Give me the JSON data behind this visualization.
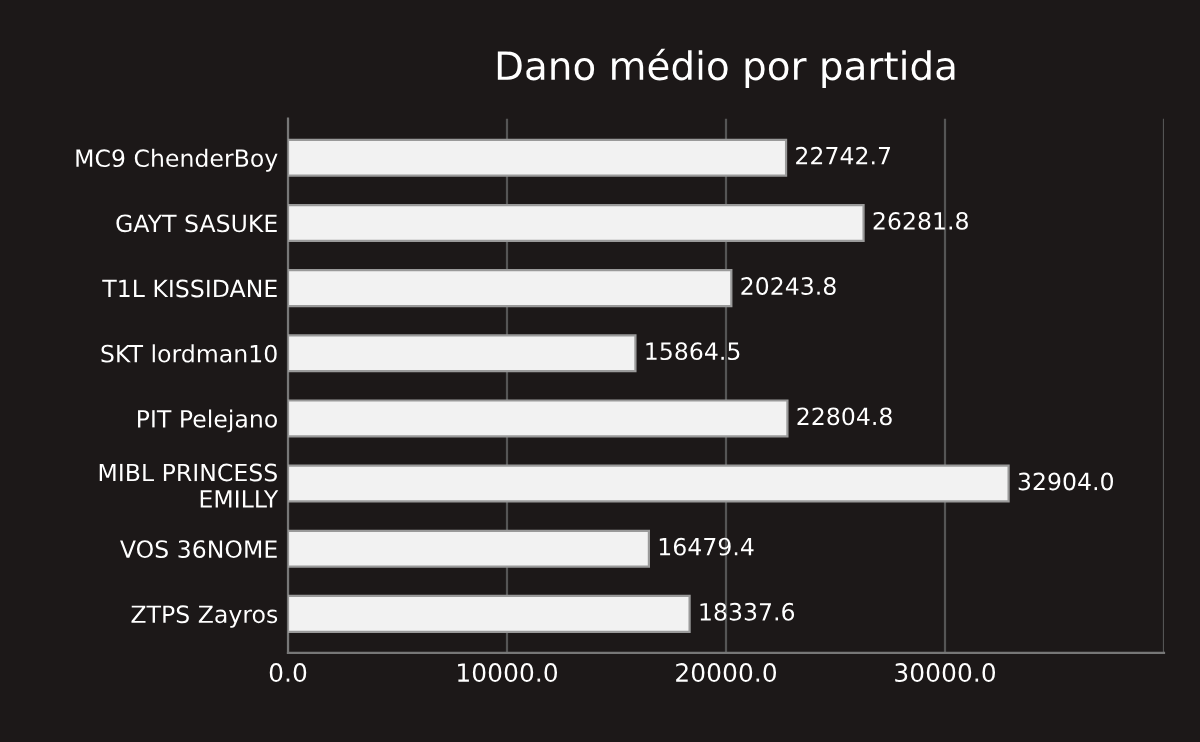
{
  "chart_data": {
    "type": "bar",
    "orientation": "horizontal",
    "title": "Dano médio por partida",
    "categories": [
      "MC9 ChenderBoy",
      "GAYT SASUKE",
      "T1L KISSIDANE",
      "SKT lordman10",
      "PIT Pelejano",
      "MIBL PRINCESS\nEMILLY",
      "VOS 36NOME",
      "ZTPS Zayros"
    ],
    "values": [
      22742.7,
      26281.8,
      20243.8,
      15864.5,
      22804.8,
      32904.0,
      16479.4,
      18337.6
    ],
    "value_labels": [
      "22742.7",
      "26281.8",
      "20243.8",
      "15864.5",
      "22804.8",
      "32904.0",
      "16479.4",
      "18337.6"
    ],
    "color": "#f2f2f2",
    "xlim": [
      0,
      40000
    ],
    "xticks": [
      {
        "value": 0,
        "label": "0.0"
      },
      {
        "value": 10000,
        "label": "10000.0"
      },
      {
        "value": 20000,
        "label": "20000.0"
      },
      {
        "value": 30000,
        "label": "30000.0"
      },
      {
        "value": 40000,
        "label": null
      }
    ],
    "grid": "x"
  }
}
